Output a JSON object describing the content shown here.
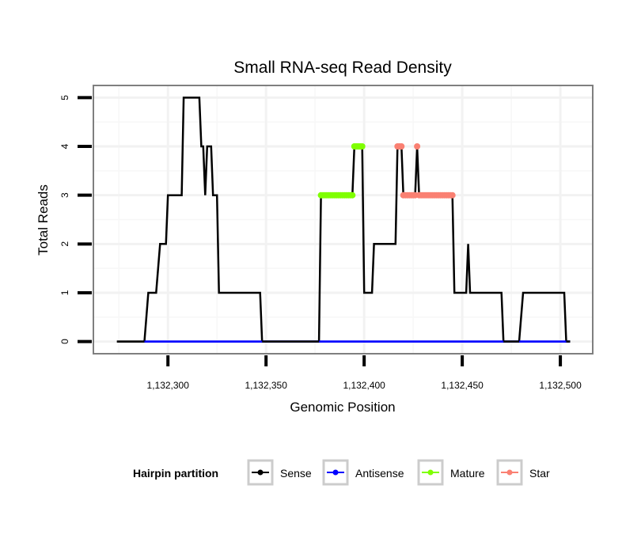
{
  "chart_data": {
    "type": "line",
    "title": "Small RNA-seq Read Density",
    "xlabel": "Genomic Position",
    "ylabel": "Total Reads",
    "xlim": [
      1132262,
      1132516.5
    ],
    "ylim": [
      -0.25,
      5.25
    ],
    "x_ticks": [
      {
        "value": 1132300,
        "label": "1,132,300"
      },
      {
        "value": 1132350,
        "label": "1,132,350"
      },
      {
        "value": 1132400,
        "label": "1,132,400"
      },
      {
        "value": 1132450,
        "label": "1,132,450"
      },
      {
        "value": 1132500,
        "label": "1,132,500"
      }
    ],
    "y_ticks": [
      {
        "value": 0,
        "label": "0"
      },
      {
        "value": 1,
        "label": "1"
      },
      {
        "value": 2,
        "label": "2"
      },
      {
        "value": 3,
        "label": "3"
      },
      {
        "value": 4,
        "label": "4"
      },
      {
        "value": 5,
        "label": "5"
      }
    ],
    "grid": true,
    "legend": {
      "title": "Hairpin partition",
      "position": "bottom"
    },
    "series": [
      {
        "name": "Sense",
        "color": "#000000",
        "style": "line",
        "points": [
          [
            1132274,
            0
          ],
          [
            1132288,
            0
          ],
          [
            1132290,
            1
          ],
          [
            1132294,
            1
          ],
          [
            1132296,
            2
          ],
          [
            1132299,
            2
          ],
          [
            1132300,
            3
          ],
          [
            1132307,
            3
          ],
          [
            1132308,
            5
          ],
          [
            1132316,
            5
          ],
          [
            1132317,
            4
          ],
          [
            1132318,
            4
          ],
          [
            1132319,
            3
          ],
          [
            1132320,
            4
          ],
          [
            1132322,
            4
          ],
          [
            1132323,
            3
          ],
          [
            1132325,
            3
          ],
          [
            1132326,
            1
          ],
          [
            1132347,
            1
          ],
          [
            1132348,
            0
          ],
          [
            1132377,
            0
          ],
          [
            1132378,
            3
          ],
          [
            1132394,
            3
          ],
          [
            1132395,
            4
          ],
          [
            1132399,
            4
          ],
          [
            1132400,
            1
          ],
          [
            1132404,
            1
          ],
          [
            1132405,
            2
          ],
          [
            1132416,
            2
          ],
          [
            1132417,
            4
          ],
          [
            1132419,
            4
          ],
          [
            1132420,
            3
          ],
          [
            1132426,
            3
          ],
          [
            1132427,
            4
          ],
          [
            1132428,
            3
          ],
          [
            1132445,
            3
          ],
          [
            1132446,
            1
          ],
          [
            1132452,
            1
          ],
          [
            1132453,
            2
          ],
          [
            1132454,
            1
          ],
          [
            1132470,
            1
          ],
          [
            1132471,
            0
          ],
          [
            1132479,
            0
          ],
          [
            1132481,
            1
          ],
          [
            1132502,
            1
          ],
          [
            1132503,
            0
          ],
          [
            1132505,
            0
          ]
        ]
      },
      {
        "name": "Antisense",
        "color": "#0000FF",
        "style": "line",
        "points": [
          [
            1132288,
            0
          ],
          [
            1132505,
            0
          ]
        ]
      },
      {
        "name": "Mature",
        "color": "#7FFF00",
        "style": "points",
        "points": [
          [
            1132378,
            3
          ],
          [
            1132379,
            3
          ],
          [
            1132380,
            3
          ],
          [
            1132381,
            3
          ],
          [
            1132382,
            3
          ],
          [
            1132383,
            3
          ],
          [
            1132384,
            3
          ],
          [
            1132385,
            3
          ],
          [
            1132386,
            3
          ],
          [
            1132387,
            3
          ],
          [
            1132388,
            3
          ],
          [
            1132389,
            3
          ],
          [
            1132390,
            3
          ],
          [
            1132391,
            3
          ],
          [
            1132392,
            3
          ],
          [
            1132393,
            3
          ],
          [
            1132394,
            3
          ],
          [
            1132395,
            4
          ],
          [
            1132396,
            4
          ],
          [
            1132397,
            4
          ],
          [
            1132398,
            4
          ],
          [
            1132399,
            4
          ]
        ]
      },
      {
        "name": "Star",
        "color": "#FA8072",
        "style": "points",
        "points": [
          [
            1132417,
            4
          ],
          [
            1132418,
            4
          ],
          [
            1132419,
            4
          ],
          [
            1132420,
            3
          ],
          [
            1132421,
            3
          ],
          [
            1132422,
            3
          ],
          [
            1132423,
            3
          ],
          [
            1132424,
            3
          ],
          [
            1132425,
            3
          ],
          [
            1132426,
            3
          ],
          [
            1132427,
            4
          ],
          [
            1132428,
            3
          ],
          [
            1132429,
            3
          ],
          [
            1132430,
            3
          ],
          [
            1132431,
            3
          ],
          [
            1132432,
            3
          ],
          [
            1132433,
            3
          ],
          [
            1132434,
            3
          ],
          [
            1132435,
            3
          ],
          [
            1132436,
            3
          ],
          [
            1132437,
            3
          ],
          [
            1132438,
            3
          ],
          [
            1132439,
            3
          ],
          [
            1132440,
            3
          ],
          [
            1132441,
            3
          ],
          [
            1132442,
            3
          ],
          [
            1132443,
            3
          ],
          [
            1132444,
            3
          ],
          [
            1132445,
            3
          ]
        ]
      }
    ]
  }
}
